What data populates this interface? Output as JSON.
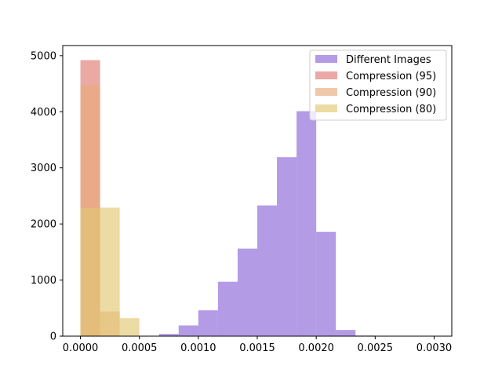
{
  "chart_data": {
    "type": "histogram",
    "title": "",
    "xlabel": "",
    "ylabel": "",
    "xlim": [
      -0.00015,
      0.00315
    ],
    "ylim": [
      0,
      5180
    ],
    "xticks": [
      0.0,
      0.0005,
      0.001,
      0.0015,
      0.002,
      0.0025,
      0.003
    ],
    "xtick_labels": [
      "0.0000",
      "0.0005",
      "0.0010",
      "0.0015",
      "0.0020",
      "0.0025",
      "0.0030"
    ],
    "yticks": [
      0,
      1000,
      2000,
      3000,
      4000,
      5000
    ],
    "ytick_labels": [
      "0",
      "1000",
      "2000",
      "3000",
      "4000",
      "5000"
    ],
    "grid": false,
    "legend_position": "top-right",
    "series": [
      {
        "name": "Different Images",
        "color": "#9370db",
        "alpha": 0.7,
        "bin_edges": [
          0.0,
          0.0001666,
          0.0003333,
          0.0005,
          0.0006666,
          0.0008333,
          0.001,
          0.0011666,
          0.0013333,
          0.0015,
          0.0016666,
          0.0018333,
          0.002,
          0.0021666,
          0.0023333,
          0.0025,
          0.0026666,
          0.0028333,
          0.003
        ],
        "counts": [
          0,
          0,
          0,
          5,
          40,
          190,
          460,
          970,
          1560,
          2330,
          3190,
          4010,
          1860,
          110,
          10,
          2,
          1,
          1
        ]
      },
      {
        "name": "Compression (95)",
        "color": "#e07b73",
        "alpha": 0.65,
        "bin_edges": [
          0.0,
          0.0001666,
          0.0003333,
          0.0005
        ],
        "counts": [
          4920,
          0,
          0
        ]
      },
      {
        "name": "Compression (90)",
        "color": "#e8ab7a",
        "alpha": 0.65,
        "bin_edges": [
          0.0,
          0.0001666,
          0.0003333,
          0.0005
        ],
        "counts": [
          4470,
          440,
          0
        ]
      },
      {
        "name": "Compression (80)",
        "color": "#e3c873",
        "alpha": 0.65,
        "bin_edges": [
          0.0,
          0.0001666,
          0.0003333,
          0.0005
        ],
        "counts": [
          2280,
          2290,
          320
        ]
      }
    ]
  }
}
